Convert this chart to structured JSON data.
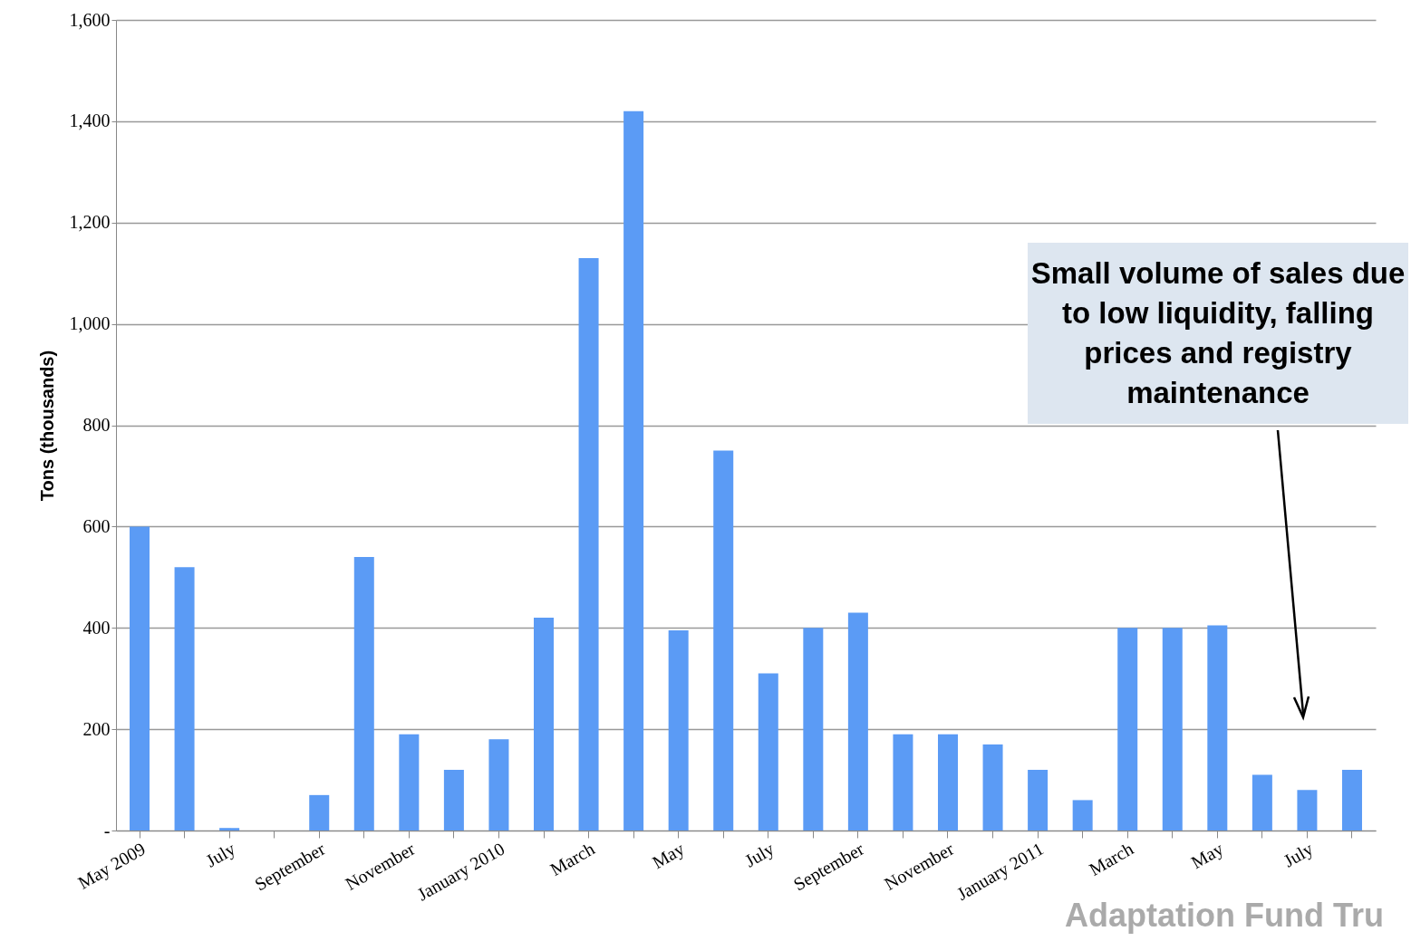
{
  "chart_data": {
    "type": "bar",
    "ylabel": "Tons (thousands)",
    "categories": [
      "May 2009",
      null,
      "July",
      null,
      "September",
      null,
      "November",
      null,
      "January 2010",
      null,
      "March",
      null,
      "May",
      null,
      "July",
      null,
      "September",
      null,
      "November",
      null,
      "January 2011",
      null,
      "March",
      null,
      "May",
      null,
      "July",
      null
    ],
    "values": [
      600,
      520,
      5,
      0,
      70,
      540,
      190,
      120,
      180,
      420,
      1130,
      1420,
      395,
      750,
      310,
      400,
      430,
      190,
      190,
      170,
      120,
      60,
      400,
      400,
      405,
      110,
      80,
      120
    ],
    "color": "#5b9bf5",
    "ylim": [
      0,
      1600
    ],
    "yticks": [
      {
        "value": 0,
        "label": "-"
      },
      200,
      400,
      600,
      800,
      {
        "value": 1000,
        "label": "1,000"
      },
      {
        "value": 1200,
        "label": "1,200"
      },
      {
        "value": 1400,
        "label": "1,400"
      },
      {
        "value": 1600,
        "label": "1,600"
      }
    ],
    "grid": "y",
    "annotations": [
      "Small volume of sales due to low liquidity, falling prices and registry maintenance",
      "Adaptation Fund Tru"
    ]
  }
}
